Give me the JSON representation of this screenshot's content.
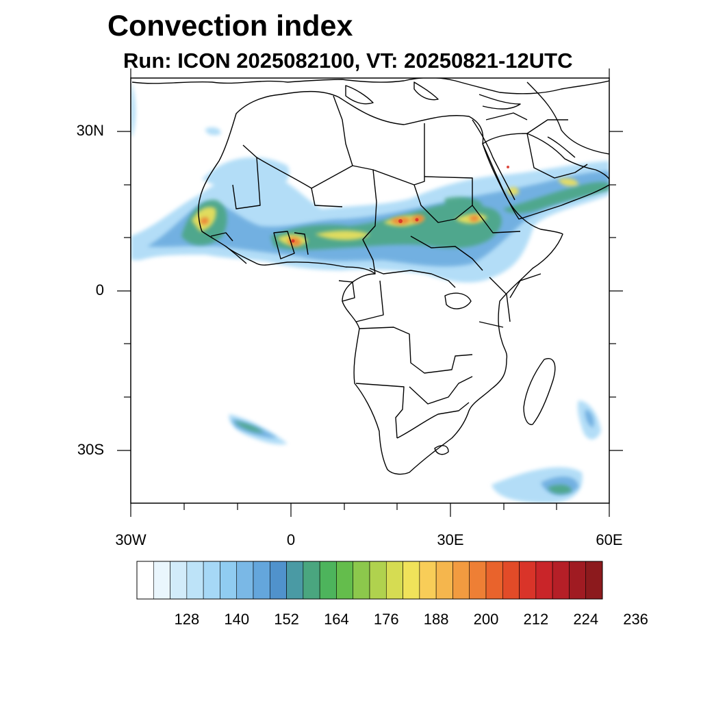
{
  "title": "Convection index",
  "subtitle": "Run: ICON 2025082100,  VT: 20250821-12UTC",
  "map": {
    "lat_labels": [
      "30N",
      "0",
      "30S"
    ],
    "lon_labels": [
      "30W",
      "0",
      "30E",
      "60E"
    ],
    "lat_range": [
      -40,
      40
    ],
    "lon_range": [
      -30,
      60
    ]
  },
  "colorbar": {
    "tick_labels": [
      "128",
      "140",
      "152",
      "164",
      "176",
      "188",
      "200",
      "212",
      "224",
      "236"
    ],
    "colors": [
      "#ffffff",
      "#eaf6fd",
      "#d2ecfa",
      "#bde3f8",
      "#a6d8f6",
      "#90ccf1",
      "#7ab8e6",
      "#64a6dc",
      "#5092cc",
      "#4a9aa4",
      "#4aa67f",
      "#4db45c",
      "#64bd4c",
      "#8cc84c",
      "#b0d24e",
      "#d6dc52",
      "#f0e25a",
      "#f8cd58",
      "#f5b64d",
      "#f29b40",
      "#ee7f35",
      "#e9632c",
      "#e24b28",
      "#d93429",
      "#c92529",
      "#b51f27",
      "#a01b22",
      "#8c1a1d"
    ]
  },
  "colors": {
    "coast": "#000000",
    "text": "#000000"
  }
}
